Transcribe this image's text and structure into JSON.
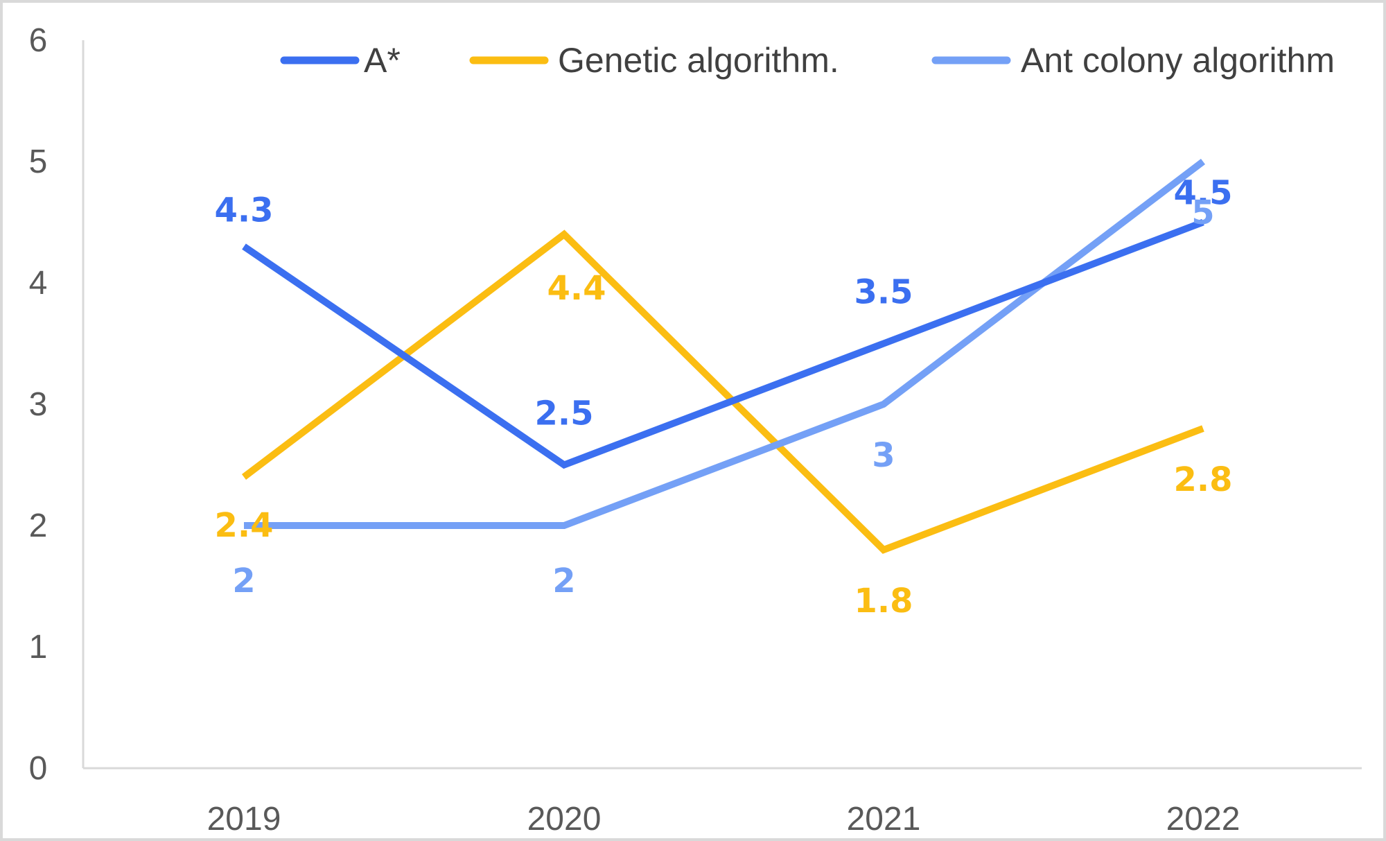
{
  "chart_data": {
    "type": "line",
    "title": "",
    "xlabel": "",
    "ylabel": "",
    "categories": [
      "2019",
      "2020",
      "2021",
      "2022"
    ],
    "ylim": [
      0,
      6
    ],
    "yticks": [
      0,
      1,
      2,
      3,
      4,
      5,
      6
    ],
    "grid": false,
    "drop_lines": true,
    "legend": "top",
    "series": [
      {
        "name": "A*",
        "values": [
          4.3,
          2.5,
          3.5,
          4.5
        ],
        "color": "#3b6ff0",
        "labels": [
          "4.3",
          "2.5",
          "3.5",
          "4.5"
        ]
      },
      {
        "name": "Genetic algorithm.",
        "values": [
          2.4,
          4.4,
          1.8,
          2.8
        ],
        "color": "#fbbd12",
        "labels": [
          "2.4",
          "4.4",
          "1.8",
          "2.8"
        ]
      },
      {
        "name": "Ant colony algorithm",
        "values": [
          2,
          2,
          3,
          5
        ],
        "color": "#74a0f6",
        "labels": [
          "2",
          "2",
          "3",
          "5"
        ]
      }
    ]
  }
}
